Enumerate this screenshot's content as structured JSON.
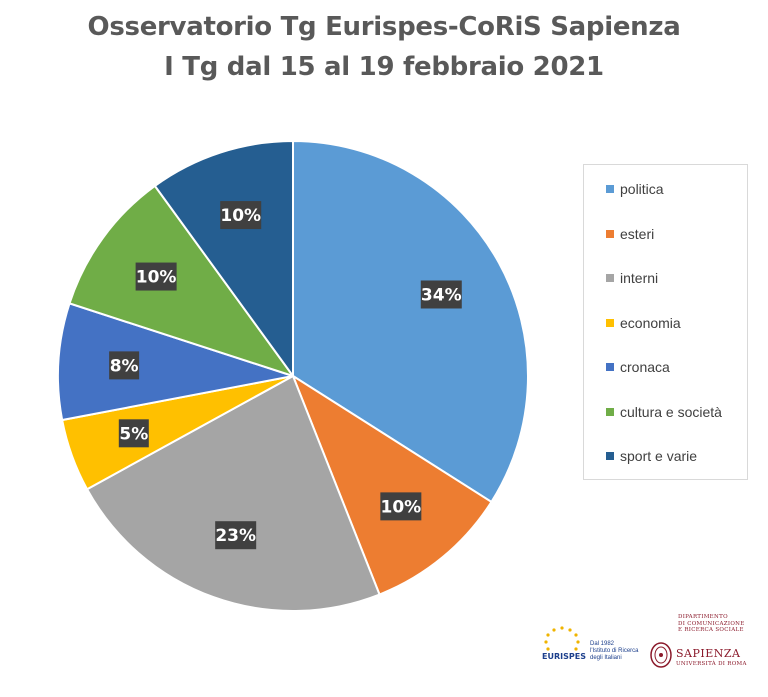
{
  "chart_data": {
    "type": "pie",
    "title": "Osservatorio Tg Eurispes-CoRiS Sapienza",
    "subtitle": "I Tg dal 15 al 19 febbraio 2021",
    "slices": [
      {
        "name": "politica",
        "value": 34,
        "label": "34%",
        "color": "#5b9bd5"
      },
      {
        "name": "esteri",
        "value": 10,
        "label": "10%",
        "color": "#ed7d31"
      },
      {
        "name": "interni",
        "value": 23,
        "label": "23%",
        "color": "#a5a5a5"
      },
      {
        "name": "economia",
        "value": 5,
        "label": "5%",
        "color": "#ffc000"
      },
      {
        "name": "cronaca",
        "value": 8,
        "label": "8%",
        "color": "#4472c4"
      },
      {
        "name": "cultura e società",
        "value": 10,
        "label": "10%",
        "color": "#70ad47"
      },
      {
        "name": "sport e varie",
        "value": 10,
        "label": "10%",
        "color": "#255e91"
      }
    ],
    "legend": "right"
  },
  "logos": {
    "eurispes": {
      "name": "EURISPES",
      "tagline": [
        "Dal 1982",
        "l'Istituto di Ricerca",
        "degli Italiani"
      ]
    },
    "sapienza": {
      "department": [
        "DIPARTIMENTO",
        "DI COMUNICAZIONE",
        "E RICERCA SOCIALE"
      ],
      "name": "SAPIENZA",
      "sub": "UNIVERSITÀ DI ROMA"
    }
  }
}
